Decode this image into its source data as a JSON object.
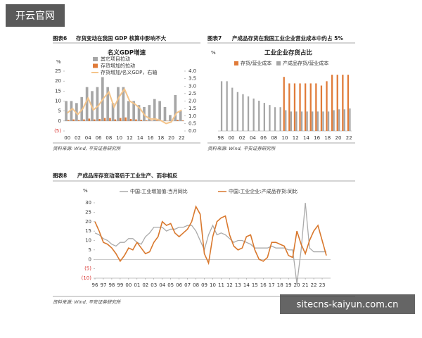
{
  "logo": "开云官网",
  "watermark": "sitecns-kaiyun.com.cn",
  "chart_data": [
    {
      "type": "combo",
      "figure_label": "图表6",
      "figure_title": "存货变动在我国 GDP 核算中影响不大",
      "title": "名义GDP增速",
      "y_label": "%",
      "source": "资料来源: Wind, 平安证券研究所",
      "categories": [
        "00",
        null,
        "02",
        null,
        "04",
        null,
        "06",
        null,
        "08",
        null,
        "10",
        null,
        "12",
        null,
        "14",
        null,
        "16",
        null,
        "18",
        null,
        "20",
        null,
        "22"
      ],
      "series": [
        {
          "name": "其它项目拉动",
          "color": "#a6a6a6",
          "values": [
            10,
            10,
            9,
            12,
            17,
            15,
            17,
            22,
            17,
            9,
            17,
            17,
            10,
            10,
            8,
            7,
            8,
            11,
            10,
            7,
            3,
            13,
            5
          ]
        },
        {
          "name": "存货增加的拉动",
          "color": "#e07b39",
          "values": [
            0.5,
            0.8,
            0.5,
            0.8,
            1.2,
            0.8,
            1,
            1.5,
            1.5,
            0.8,
            1.5,
            1.8,
            1,
            0.8,
            0.6,
            0.3,
            0.2,
            0.3,
            0.2,
            0.1,
            0.1,
            0.6,
            0.3
          ]
        },
        {
          "name": "存货增加/名义GDP，右轴",
          "color": "#f4c48a",
          "axis": "y2",
          "values": [
            1.2,
            1.5,
            1.1,
            1.5,
            2.2,
            1.4,
            1.7,
            2.2,
            2.6,
            1.6,
            2.3,
            2.8,
            2,
            1.8,
            1.5,
            1,
            0.8,
            0.8,
            0.7,
            0.5,
            0.6,
            1.2,
            1.4
          ]
        }
      ],
      "ylim": [
        -5,
        25
      ],
      "yticks": [
        {
          "value": -5,
          "label": "(5)"
        },
        0,
        5,
        10,
        15,
        20,
        25
      ],
      "y2lim": [
        0,
        4
      ],
      "y2ticks": [
        {
          "value": 0,
          "label": "0.0"
        },
        {
          "value": 0.5,
          "label": "0.5"
        },
        {
          "value": 1,
          "label": "1.0"
        },
        {
          "value": 1.5,
          "label": "1.5"
        },
        {
          "value": 2,
          "label": "2.0"
        },
        {
          "value": 2.5,
          "label": "2.5"
        },
        {
          "value": 3,
          "label": "3.0"
        },
        {
          "value": 3.5,
          "label": "3.5"
        },
        {
          "value": 4,
          "label": "4.0"
        }
      ]
    },
    {
      "type": "bar",
      "figure_label": "图表7",
      "figure_title": "产成品存货在我国工业企业营业成本中约占 5%",
      "title": "工业企业存货占比",
      "y_label": "%",
      "source": "资料来源: Wind, 平安证券研究所",
      "categories": [
        "98",
        null,
        "00",
        null,
        "02",
        null,
        "04",
        null,
        "06",
        null,
        "08",
        null,
        "10",
        null,
        "12",
        null,
        "14",
        null,
        "16",
        null,
        "18",
        null,
        "20",
        null,
        "22"
      ],
      "series": [
        {
          "name": "存货/营业成本",
          "color": "#e07b39",
          "values": [
            null,
            null,
            null,
            null,
            null,
            null,
            null,
            null,
            null,
            null,
            null,
            null,
            12.5,
            11,
            11,
            11,
            11,
            11,
            11,
            10.5,
            11.5,
            13,
            13,
            13,
            13
          ]
        },
        {
          "name": "产成品存货/营业成本",
          "color": "#a6a6a6",
          "values": [
            11.5,
            11.5,
            10,
            9,
            8.5,
            8,
            7.5,
            7,
            6.5,
            6,
            5.5,
            5.5,
            4.8,
            4.5,
            4.5,
            4.5,
            4.5,
            4.5,
            4.5,
            4.5,
            4.5,
            4.8,
            5,
            5,
            5.2
          ]
        }
      ],
      "ylim": [
        0,
        14
      ]
    },
    {
      "type": "line",
      "figure_label": "图表8",
      "figure_title": "产成品库存变动滞后于工业生产、而非相反",
      "y_label": "%",
      "source": "资料来源: Wind, 平安证券研究所",
      "x": [
        1996,
        1996.5,
        1997,
        1997.5,
        1998,
        1998.5,
        1999,
        1999.5,
        2000,
        2000.5,
        2001,
        2001.5,
        2002,
        2002.5,
        2003,
        2003.5,
        2004,
        2004.5,
        2005,
        2005.5,
        2006,
        2006.5,
        2007,
        2007.5,
        2008,
        2008.5,
        2009,
        2009.5,
        2010,
        2010.5,
        2011,
        2011.5,
        2012,
        2012.5,
        2013,
        2013.5,
        2014,
        2014.5,
        2015,
        2015.5,
        2016,
        2016.5,
        2017,
        2017.5,
        2018,
        2018.5,
        2019,
        2019.5,
        2020,
        2020.5,
        2021,
        2021.5,
        2022,
        2022.5,
        2023,
        2023.5
      ],
      "series": [
        {
          "name": "中国:工业增加值:当月同比",
          "color": "#aaaaaa",
          "values": [
            14,
            13,
            11,
            10,
            8,
            7,
            9,
            9,
            11,
            11,
            9,
            8,
            12,
            14,
            17,
            17,
            17,
            15,
            16,
            16,
            17,
            17,
            18,
            18,
            15,
            10,
            5,
            13,
            18,
            13,
            14,
            13,
            11,
            9,
            10,
            10,
            9,
            8,
            6,
            6,
            6,
            6,
            7,
            6,
            6,
            6,
            5,
            5,
            -13,
            5,
            30,
            6,
            4,
            4,
            4,
            4
          ]
        },
        {
          "name": "中国:工业企业:产成品存货:同比",
          "color": "#d9782d",
          "values": [
            20,
            15,
            9,
            8,
            6,
            3,
            -1,
            2,
            6,
            5,
            9,
            6,
            3,
            4,
            9,
            12,
            20,
            18,
            19,
            14,
            12,
            14,
            16,
            20,
            28,
            24,
            3,
            -2,
            12,
            20,
            22,
            23,
            13,
            7,
            5,
            6,
            12,
            13,
            5,
            0,
            -1,
            1,
            9,
            9,
            8,
            7,
            2,
            1,
            15,
            8,
            3,
            10,
            15,
            18,
            10,
            2
          ]
        }
      ],
      "ylim": [
        -10,
        30
      ],
      "yticks": [
        {
          "value": -10,
          "label": "(10)"
        },
        {
          "value": -5,
          "label": "(5)"
        },
        0,
        5,
        10,
        15,
        20,
        25,
        30
      ],
      "xlim": [
        1996,
        2024
      ],
      "xticks": [
        {
          "value": 1996,
          "label": "96"
        },
        {
          "value": 1997,
          "label": "97"
        },
        {
          "value": 1998,
          "label": "98"
        },
        {
          "value": 1999,
          "label": "99"
        },
        {
          "value": 2000,
          "label": "00"
        },
        {
          "value": 2001,
          "label": "01"
        },
        {
          "value": 2002,
          "label": "02"
        },
        {
          "value": 2003,
          "label": "03"
        },
        {
          "value": 2004,
          "label": "04"
        },
        {
          "value": 2005,
          "label": "05"
        },
        {
          "value": 2006,
          "label": "06"
        },
        {
          "value": 2007,
          "label": "07"
        },
        {
          "value": 2008,
          "label": "08"
        },
        {
          "value": 2009,
          "label": "09"
        },
        {
          "value": 2010,
          "label": "10"
        },
        {
          "value": 2011,
          "label": "11"
        },
        {
          "value": 2012,
          "label": "12"
        },
        {
          "value": 2013,
          "label": "13"
        },
        {
          "value": 2014,
          "label": "14"
        },
        {
          "value": 2015,
          "label": "15"
        },
        {
          "value": 2016,
          "label": "16"
        },
        {
          "value": 2017,
          "label": "17"
        },
        {
          "value": 2018,
          "label": "18"
        },
        {
          "value": 2019,
          "label": "19"
        },
        {
          "value": 2020,
          "label": "20"
        },
        {
          "value": 2021,
          "label": "21"
        },
        {
          "value": 2022,
          "label": "22"
        },
        {
          "value": 2023,
          "label": "23"
        }
      ]
    }
  ]
}
